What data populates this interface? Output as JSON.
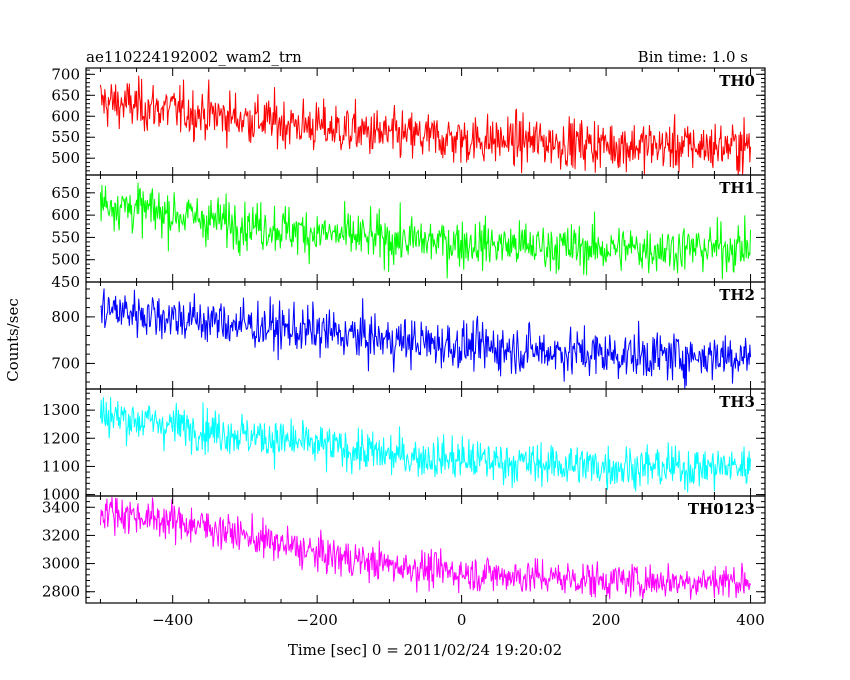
{
  "header": {
    "title": "ae110224192002_wam2_trn",
    "bin_time": "Bin time: 1.0 s"
  },
  "axes": {
    "xlabel": "Time [sec] 0 = 2011/02/24 19:20:02",
    "ylabel": "Counts/sec",
    "xlim": [
      -520,
      420
    ],
    "xticks_major": [
      -400,
      -200,
      0,
      200,
      400
    ],
    "xtick_labels": [
      "−400",
      "−200",
      "0",
      "200",
      "400"
    ],
    "xticks_minor_step": 50
  },
  "chart_data": {
    "type": "line",
    "x_range": [
      -500,
      400
    ],
    "bin_width": 1.0,
    "panels": [
      {
        "name": "TH0",
        "color": "#ff0000",
        "ylim": [
          460,
          715
        ],
        "yticks": [
          500,
          550,
          600,
          650,
          700
        ],
        "ytick_labels": [
          "500",
          "550",
          "600",
          "650",
          "700"
        ],
        "trend": [
          [
            -500,
            635
          ],
          [
            -450,
            625
          ],
          [
            -350,
            605
          ],
          [
            -200,
            575
          ],
          [
            -100,
            555
          ],
          [
            0,
            545
          ],
          [
            100,
            540
          ],
          [
            200,
            532
          ],
          [
            300,
            528
          ],
          [
            400,
            528
          ]
        ],
        "noise_sd": 30
      },
      {
        "name": "TH1",
        "color": "#00ff00",
        "ylim": [
          450,
          690
        ],
        "yticks": [
          450,
          500,
          550,
          600,
          650
        ],
        "ytick_labels": [
          "450",
          "500",
          "550",
          "600",
          "650"
        ],
        "trend": [
          [
            -500,
            630
          ],
          [
            -450,
            615
          ],
          [
            -350,
            590
          ],
          [
            -200,
            560
          ],
          [
            -100,
            545
          ],
          [
            0,
            538
          ],
          [
            100,
            530
          ],
          [
            200,
            525
          ],
          [
            300,
            525
          ],
          [
            400,
            528
          ]
        ],
        "noise_sd": 27
      },
      {
        "name": "TH2",
        "color": "#0000ff",
        "ylim": [
          645,
          875
        ],
        "yticks": [
          700,
          800
        ],
        "ytick_labels": [
          "700",
          "800"
        ],
        "trend": [
          [
            -500,
            815
          ],
          [
            -450,
            810
          ],
          [
            -350,
            790
          ],
          [
            -200,
            768
          ],
          [
            -100,
            750
          ],
          [
            0,
            738
          ],
          [
            100,
            728
          ],
          [
            200,
            720
          ],
          [
            300,
            715
          ],
          [
            400,
            718
          ]
        ],
        "noise_sd": 26
      },
      {
        "name": "TH3",
        "color": "#00ffff",
        "ylim": [
          995,
          1375
        ],
        "yticks": [
          1000,
          1100,
          1200,
          1300
        ],
        "ytick_labels": [
          "1000",
          "1100",
          "1200",
          "1300"
        ],
        "trend": [
          [
            -500,
            1285
          ],
          [
            -450,
            1265
          ],
          [
            -350,
            1230
          ],
          [
            -200,
            1175
          ],
          [
            -100,
            1140
          ],
          [
            0,
            1125
          ],
          [
            100,
            1110
          ],
          [
            200,
            1100
          ],
          [
            300,
            1095
          ],
          [
            400,
            1100
          ]
        ],
        "noise_sd": 38
      },
      {
        "name": "TH0123",
        "color": "#ff00ff",
        "ylim": [
          2720,
          3480
        ],
        "yticks": [
          2800,
          3000,
          3200,
          3400
        ],
        "ytick_labels": [
          "2800",
          "3000",
          "3200",
          "3400"
        ],
        "trend": [
          [
            -500,
            3380
          ],
          [
            -450,
            3340
          ],
          [
            -350,
            3260
          ],
          [
            -200,
            3070
          ],
          [
            -100,
            2990
          ],
          [
            0,
            2935
          ],
          [
            100,
            2905
          ],
          [
            200,
            2880
          ],
          [
            300,
            2875
          ],
          [
            400,
            2880
          ]
        ],
        "noise_sd": 65
      }
    ]
  }
}
